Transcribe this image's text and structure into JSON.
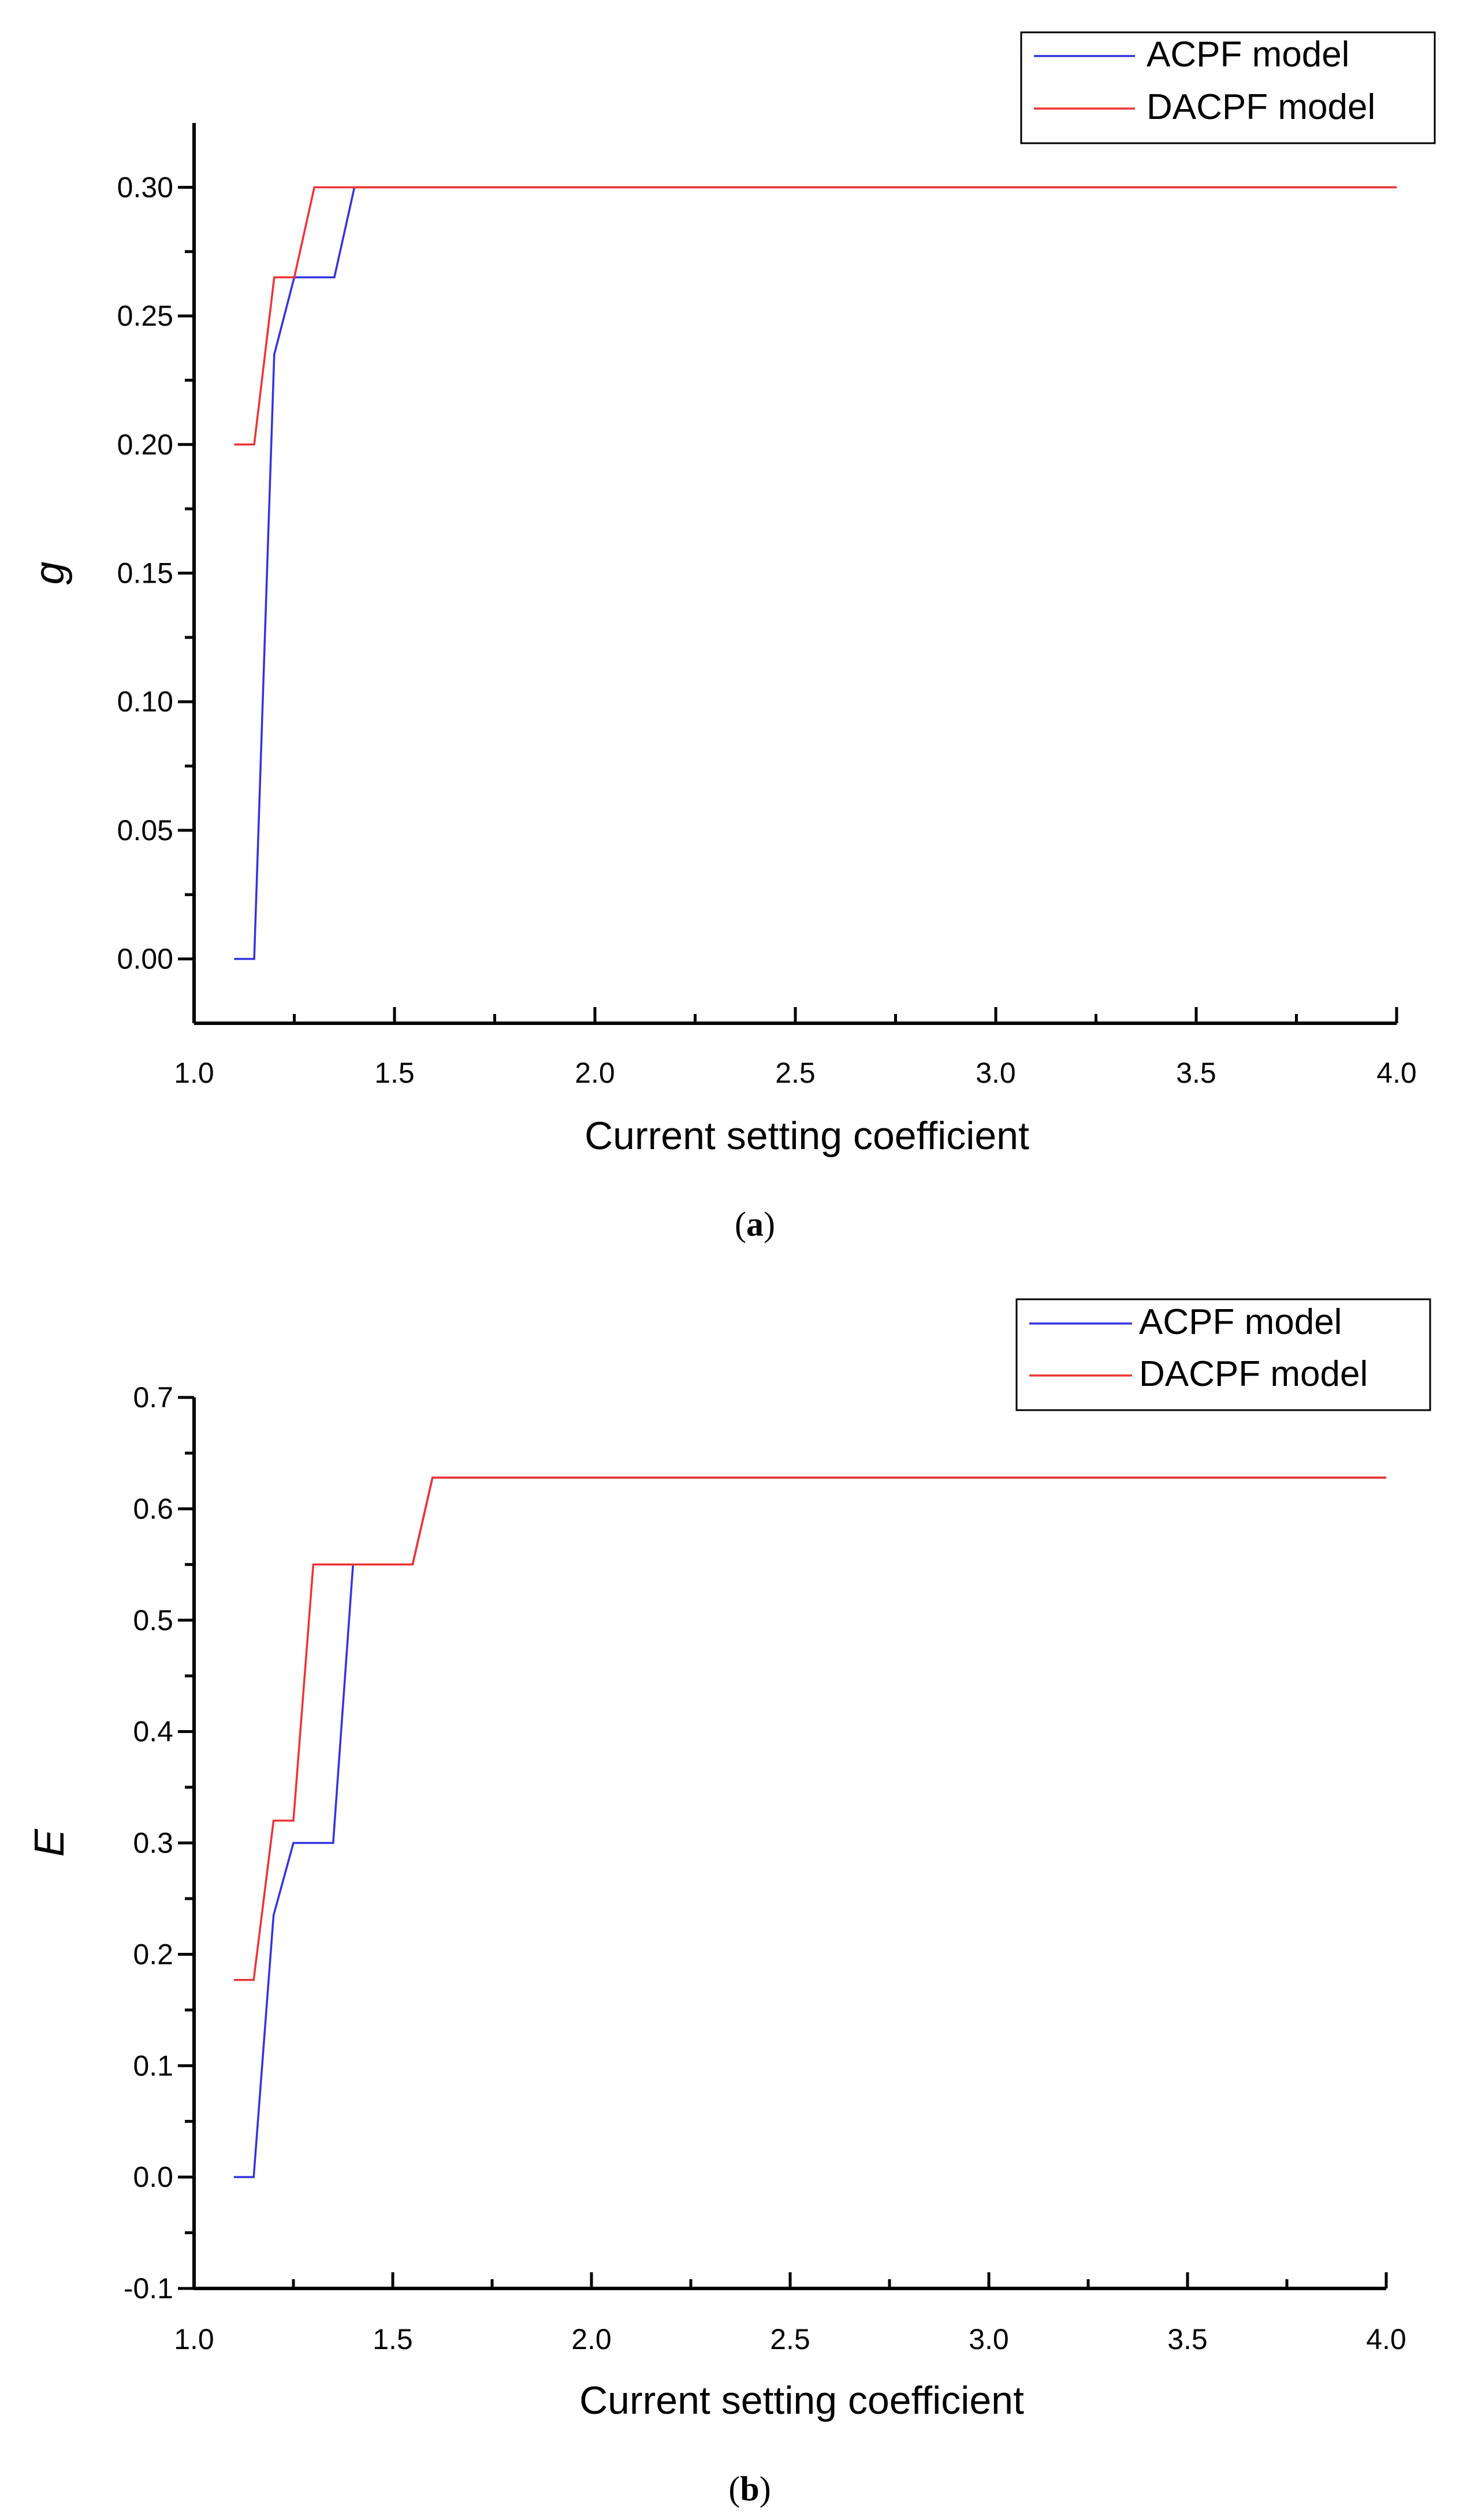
{
  "colors": {
    "acpf": "#3333dd",
    "dacpf": "#ee3333",
    "axis": "#000000"
  },
  "chart_data": [
    {
      "type": "line",
      "panel_label": "a",
      "xlabel": "Current setting coefficient",
      "ylabel": "g",
      "xlim": [
        1.0,
        4.0
      ],
      "ylim": [
        -0.025,
        0.325
      ],
      "xticks": [
        "1.0",
        "1.5",
        "2.0",
        "2.5",
        "3.0",
        "3.5",
        "4.0"
      ],
      "yticks": [
        "0.00",
        "0.05",
        "0.10",
        "0.15",
        "0.20",
        "0.25",
        "0.30"
      ],
      "grid": false,
      "legend_position": "top-right",
      "legend": [
        "ACPF model",
        "DACPF model"
      ],
      "series": [
        {
          "name": "ACPF model",
          "x": [
            1.1,
            1.15,
            1.2,
            1.25,
            1.3,
            1.35,
            1.4,
            4.0
          ],
          "y": [
            0.0,
            0.0,
            0.235,
            0.265,
            0.265,
            0.265,
            0.3,
            0.3
          ]
        },
        {
          "name": "DACPF model",
          "x": [
            1.1,
            1.15,
            1.2,
            1.25,
            1.3,
            1.35,
            1.4,
            4.0
          ],
          "y": [
            0.2,
            0.2,
            0.265,
            0.265,
            0.3,
            0.3,
            0.3,
            0.3
          ]
        }
      ]
    },
    {
      "type": "line",
      "panel_label": "b",
      "xlabel": "Current setting coefficient",
      "ylabel": "E",
      "xlim": [
        1.0,
        4.0
      ],
      "ylim": [
        -0.1,
        0.7
      ],
      "xticks": [
        "1.0",
        "1.5",
        "2.0",
        "2.5",
        "3.0",
        "3.5",
        "4.0"
      ],
      "yticks": [
        "-0.1",
        "0.0",
        "0.1",
        "0.2",
        "0.3",
        "0.4",
        "0.5",
        "0.6",
        "0.7"
      ],
      "grid": false,
      "legend_position": "top-right",
      "legend": [
        "ACPF model",
        "DACPF model"
      ],
      "series": [
        {
          "name": "ACPF model",
          "x": [
            1.1,
            1.15,
            1.2,
            1.25,
            1.3,
            1.35,
            1.4,
            1.55,
            1.6,
            4.0
          ],
          "y": [
            0.0,
            0.0,
            0.235,
            0.3,
            0.3,
            0.3,
            0.55,
            0.55,
            0.628,
            0.628
          ]
        },
        {
          "name": "DACPF model",
          "x": [
            1.1,
            1.15,
            1.2,
            1.25,
            1.3,
            1.35,
            1.4,
            1.55,
            1.6,
            4.0
          ],
          "y": [
            0.177,
            0.177,
            0.32,
            0.32,
            0.55,
            0.55,
            0.55,
            0.55,
            0.628,
            0.628
          ]
        }
      ]
    }
  ]
}
